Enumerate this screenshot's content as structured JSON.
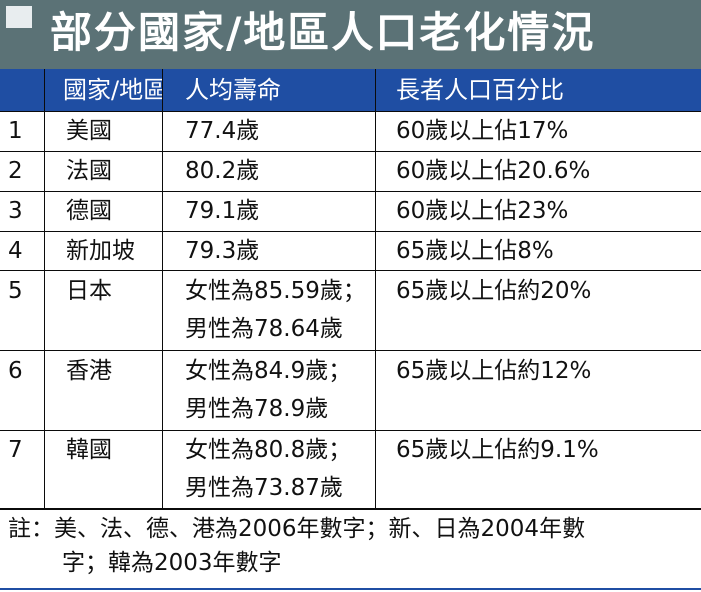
{
  "title": "部分國家/地區人口老化情況",
  "columns": [
    "國家/地區",
    "人均壽命",
    "長者人口百分比"
  ],
  "rows": [
    {
      "no": "1",
      "region": "美國",
      "life": [
        "77.4歲"
      ],
      "elderly": "60歲以上佔17%"
    },
    {
      "no": "2",
      "region": "法國",
      "life": [
        "80.2歲"
      ],
      "elderly": "60歲以上佔20.6%"
    },
    {
      "no": "3",
      "region": "德國",
      "life": [
        "79.1歲"
      ],
      "elderly": "60歲以上佔23%"
    },
    {
      "no": "4",
      "region": "新加坡",
      "life": [
        "79.3歲"
      ],
      "elderly": "65歲以上佔8%"
    },
    {
      "no": "5",
      "region": "日本",
      "life": [
        "女性為85.59歲；",
        "男性為78.64歲"
      ],
      "elderly": "65歲以上佔約20%"
    },
    {
      "no": "6",
      "region": "香港",
      "life": [
        "女性為84.9歲；",
        "男性為78.9歲"
      ],
      "elderly": "65歲以上佔約12%"
    },
    {
      "no": "7",
      "region": "韓國",
      "life": [
        "女性為80.8歲；",
        "男性為73.87歲"
      ],
      "elderly": "65歲以上佔約9.1%"
    }
  ],
  "note": [
    "註：美、法、德、港為2006年數字；新、日為2004年數",
    "字；韓為2003年數字"
  ]
}
